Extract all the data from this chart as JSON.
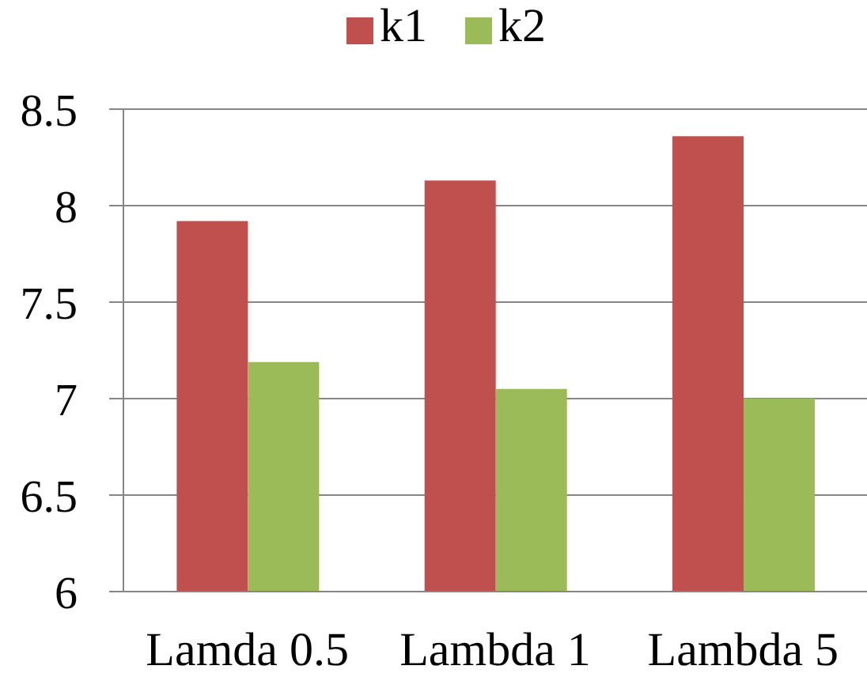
{
  "chart_data": {
    "type": "bar",
    "categories": [
      "Lamda 0.5",
      "Lambda 1",
      "Lambda 5"
    ],
    "series": [
      {
        "name": "k1",
        "color": "#c0504d",
        "values": [
          7.92,
          8.13,
          8.36
        ]
      },
      {
        "name": "k2",
        "color": "#9bbb59",
        "values": [
          7.19,
          7.05,
          7.0
        ]
      }
    ],
    "ylim": [
      6,
      8.5
    ],
    "yticks": [
      6,
      6.5,
      7,
      7.5,
      8,
      8.5
    ],
    "grid": "y",
    "legend": "top"
  }
}
